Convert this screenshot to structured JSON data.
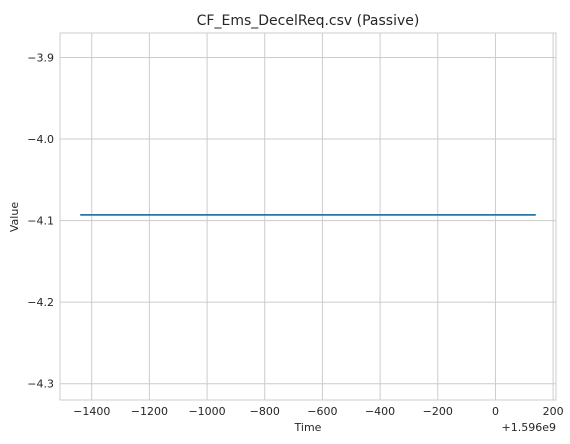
{
  "chart_data": {
    "type": "line",
    "title": "CF_Ems_DecelReq.csv (Passive)",
    "xlabel": "Time",
    "ylabel": "Value",
    "x_offset_label": "+1.596e9",
    "xlim": [
      -1510,
      210
    ],
    "ylim": [
      -4.32,
      -3.87
    ],
    "x_ticks": [
      -1400,
      -1200,
      -1000,
      -800,
      -600,
      -400,
      -200,
      0,
      200
    ],
    "x_tick_labels": [
      "−1400",
      "−1200",
      "−1000",
      "−800",
      "−600",
      "−400",
      "−200",
      "0",
      "200"
    ],
    "y_ticks": [
      -3.9,
      -4.0,
      -4.1,
      -4.2,
      -4.3
    ],
    "y_tick_labels": [
      "−3.9",
      "−4.0",
      "−4.1",
      "−4.2",
      "−4.3"
    ],
    "grid": true,
    "series": [
      {
        "color": "#1f77b4",
        "x": [
          -1440,
          140
        ],
        "y": [
          -4.093,
          -4.093
        ]
      }
    ]
  }
}
